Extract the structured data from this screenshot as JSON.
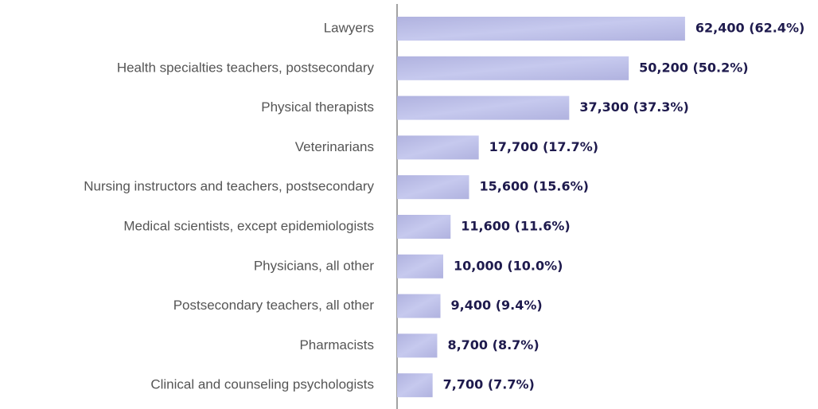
{
  "chart_data": {
    "type": "hbar",
    "categories": [
      "Lawyers",
      "Health specialties teachers, postsecondary",
      "Physical therapists",
      "Veterinarians",
      "Nursing instructors and teachers, postsecondary",
      "Medical scientists, except epidemiologists",
      "Physicians, all other",
      "Postsecondary teachers, all other",
      "Pharmacists",
      "Clinical and counseling psychologists"
    ],
    "values": [
      62400,
      50200,
      37300,
      17700,
      15600,
      11600,
      10000,
      9400,
      8700,
      7700
    ],
    "value_labels": [
      "62,400 (62.4%)",
      "50,200 (50.2%)",
      "37,300 (37.3%)",
      "17,700 (17.7%)",
      "15,600 (15.6%)",
      "11,600 (11.6%)",
      "10,000 (10.0%)",
      "9,400 (9.4%)",
      "8,700 (8.7%)",
      "7,700 (7.7%)"
    ],
    "color": "#b9bbe4",
    "xlim": [
      0,
      90000
    ]
  }
}
